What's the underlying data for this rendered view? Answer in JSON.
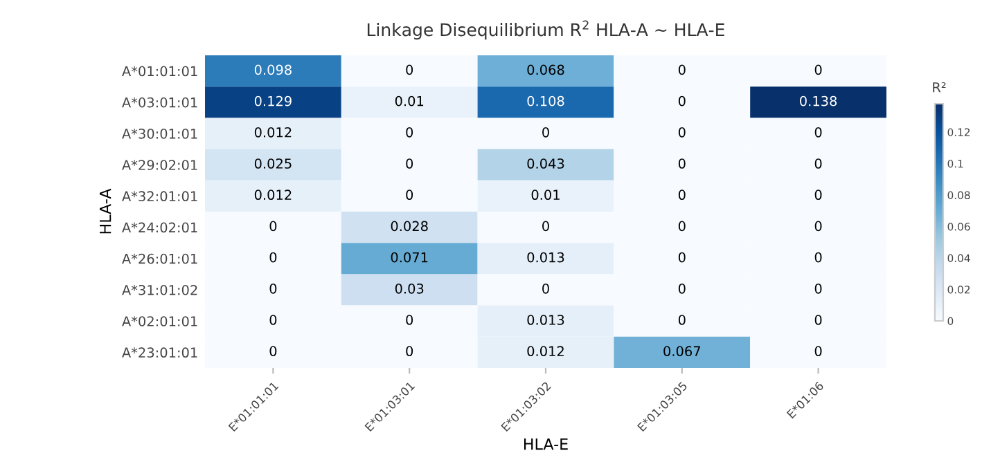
{
  "chart_data": {
    "type": "heatmap",
    "title": "Linkage Disequilibrium R$^{2}$ HLA-A ~ HLA-E",
    "xlabel": "HLA-E",
    "ylabel": "HLA-A",
    "clabel": "R²",
    "categories": [
      "E*01:01:01",
      "E*01:03:01",
      "E*01:03:02",
      "E*01:03:05",
      "E*01:06"
    ],
    "y_categories": [
      "A*01:01:01",
      "A*03:01:01",
      "A*30:01:01",
      "A*29:02:01",
      "A*32:01:01",
      "A*24:02:01",
      "A*26:01:01",
      "A*31:01:02",
      "A*02:01:01",
      "A*23:01:01"
    ],
    "cells": [
      [
        0.098,
        0,
        0.068,
        0,
        0
      ],
      [
        0.129,
        0.01,
        0.108,
        0,
        0.138
      ],
      [
        0.012,
        0,
        0,
        0,
        0
      ],
      [
        0.025,
        0,
        0.043,
        0,
        0
      ],
      [
        0.012,
        0,
        0.01,
        0,
        0
      ],
      [
        0,
        0.028,
        0,
        0,
        0
      ],
      [
        0,
        0.071,
        0.013,
        0,
        0
      ],
      [
        0,
        0.03,
        0,
        0,
        0
      ],
      [
        0,
        0,
        0.013,
        0,
        0
      ],
      [
        0,
        0,
        0.012,
        0.067,
        0
      ]
    ],
    "clim": [
      0,
      0.138
    ],
    "cticks": [
      0,
      0.02,
      0.04,
      0.06,
      0.08,
      0.1,
      0.12
    ],
    "data_labels": true
  }
}
